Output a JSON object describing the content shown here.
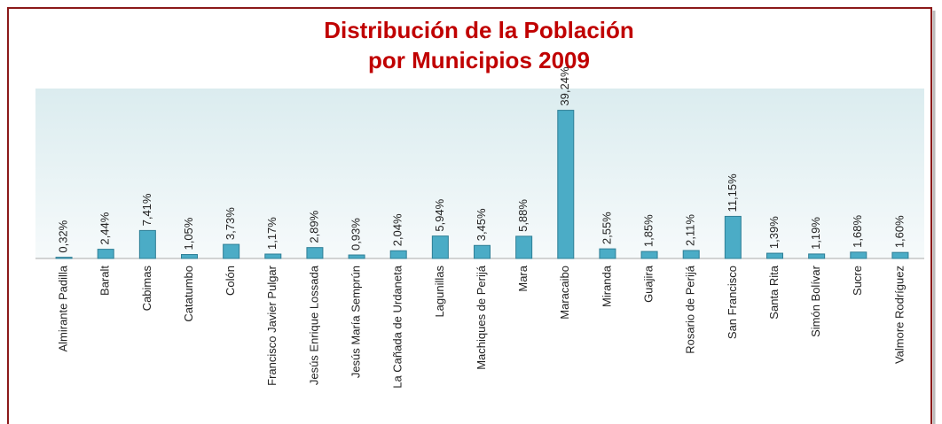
{
  "chart_data": {
    "type": "bar",
    "title": "Distribución de la Población",
    "subtitle": "por Municipios 2009",
    "categories": [
      "Almirante Padilla",
      "Baralt",
      "Cabimas",
      "Catatumbo",
      "Colón",
      "Francisco Javier Pulgar",
      "Jesús Enrique Lossada",
      "Jesús María Semprún",
      "La Cañada de Urdaneta",
      "Lagunillas",
      "Machiques de Perijá",
      "Mara",
      "Maracaibo",
      "Miranda",
      "Guajira",
      "Rosario de Perijá",
      "San Francisco",
      "Santa Rita",
      "Simón Bolívar",
      "Sucre",
      "Valmore Rodríguez"
    ],
    "values": [
      0.32,
      2.44,
      7.41,
      1.05,
      3.73,
      1.17,
      2.89,
      0.93,
      2.04,
      5.94,
      3.45,
      5.88,
      39.24,
      2.55,
      1.85,
      2.11,
      11.15,
      1.39,
      1.19,
      1.68,
      1.6
    ],
    "value_labels": [
      "0,32%",
      "2,44%",
      "7,41%",
      "1,05%",
      "3,73%",
      "1,17%",
      "2,89%",
      "0,93%",
      "2,04%",
      "5,94%",
      "3,45%",
      "5,88%",
      "39,24%",
      "2,55%",
      "1,85%",
      "2,11%",
      "11,15%",
      "1,39%",
      "1,19%",
      "1,68%",
      "1,60%"
    ],
    "color": "#4bacc6",
    "ylim": [
      0,
      45
    ]
  }
}
